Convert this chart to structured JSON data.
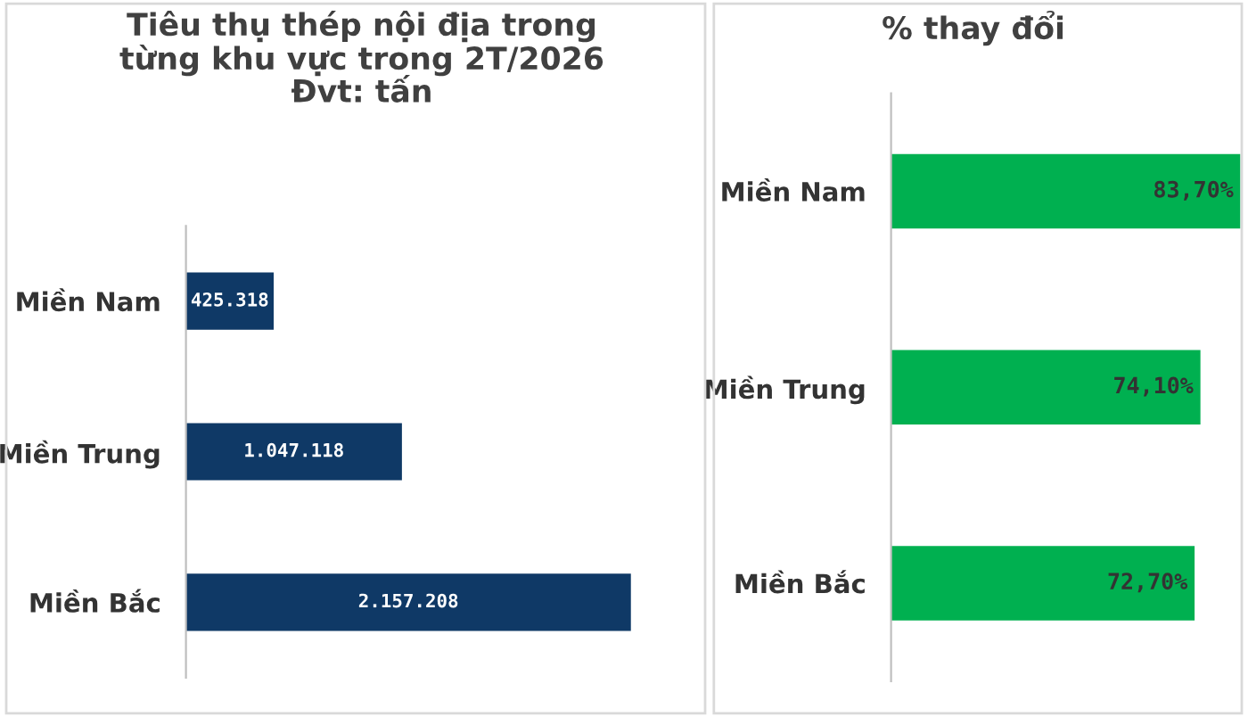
{
  "chart_data": [
    {
      "type": "bar",
      "orientation": "horizontal",
      "title": "Tiêu thụ thép nội địa trong\ntừng khu vực trong 2T/2026\nĐvt: tấn",
      "categories": [
        "Miền Nam",
        "Miền Trung",
        "Miền Bắc"
      ],
      "values": [
        425318,
        1047118,
        2157208
      ],
      "value_labels": [
        "425.318",
        "1.047.118",
        "2.157.208"
      ],
      "color": "#0f3966",
      "tick_labels": "y"
    },
    {
      "type": "bar",
      "orientation": "horizontal",
      "title": "% thay đổi",
      "categories": [
        "Miền Nam",
        "Miền Trung",
        "Miền Bắc"
      ],
      "values": [
        83.7,
        74.1,
        72.7
      ],
      "value_labels": [
        "83,70%",
        "74,10%",
        "72,70%"
      ],
      "color": "#00b050",
      "tick_labels": "y"
    }
  ]
}
